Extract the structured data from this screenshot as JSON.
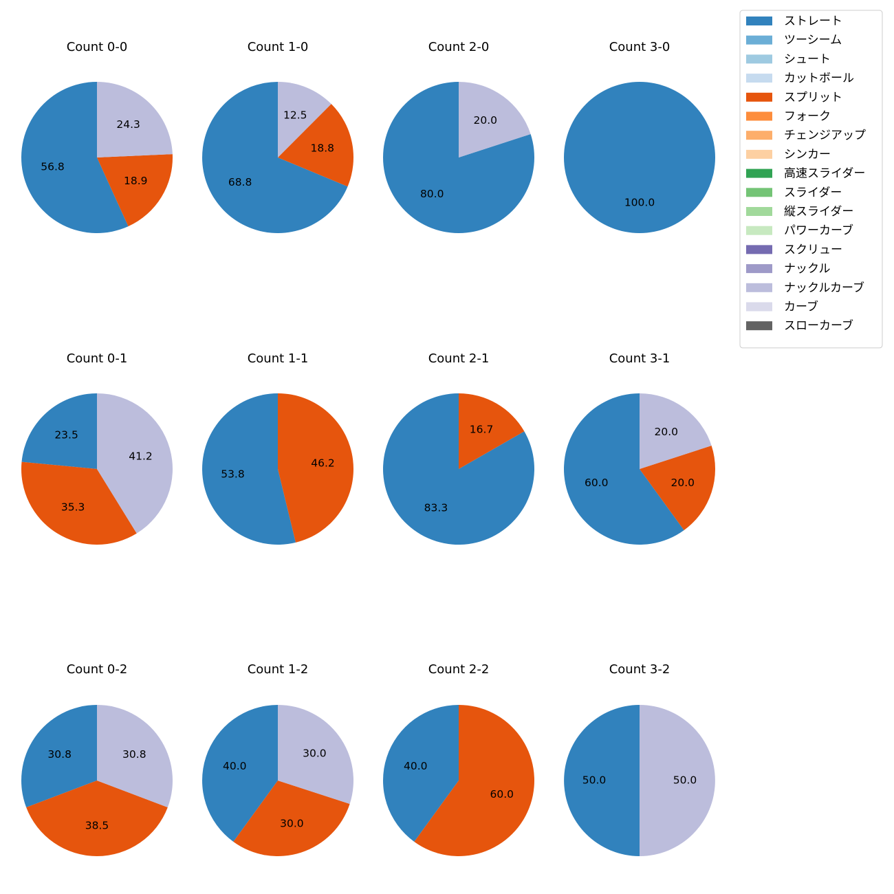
{
  "chart_data": {
    "type": "pie",
    "legend": {
      "placement": "upper-right",
      "entries": [
        {
          "name": "ストレート",
          "color": "#3182bd"
        },
        {
          "name": "ツーシーム",
          "color": "#6baed6"
        },
        {
          "name": "シュート",
          "color": "#9ecae1"
        },
        {
          "name": "カットボール",
          "color": "#c6dbef"
        },
        {
          "name": "スプリット",
          "color": "#e6550d"
        },
        {
          "name": "フォーク",
          "color": "#fd8d3c"
        },
        {
          "name": "チェンジアップ",
          "color": "#fdae6b"
        },
        {
          "name": "シンカー",
          "color": "#fdd0a2"
        },
        {
          "name": "高速スライダー",
          "color": "#31a354"
        },
        {
          "name": "スライダー",
          "color": "#74c476"
        },
        {
          "name": "縦スライダー",
          "color": "#a1d99b"
        },
        {
          "name": "パワーカーブ",
          "color": "#c7e9c0"
        },
        {
          "name": "スクリュー",
          "color": "#756bb1"
        },
        {
          "name": "ナックル",
          "color": "#9e9ac8"
        },
        {
          "name": "ナックルカーブ",
          "color": "#bcbddc"
        },
        {
          "name": "カーブ",
          "color": "#dadaeb"
        },
        {
          "name": "スローカーブ",
          "color": "#636363"
        }
      ]
    },
    "pies": [
      {
        "title": "Count 0-0",
        "slices": [
          {
            "pitch": "ストレート",
            "value": 56.8
          },
          {
            "pitch": "スプリット",
            "value": 18.9
          },
          {
            "pitch": "ナックルカーブ",
            "value": 24.3
          }
        ]
      },
      {
        "title": "Count 1-0",
        "slices": [
          {
            "pitch": "ストレート",
            "value": 68.8
          },
          {
            "pitch": "スプリット",
            "value": 18.8
          },
          {
            "pitch": "ナックルカーブ",
            "value": 12.5
          }
        ]
      },
      {
        "title": "Count 2-0",
        "slices": [
          {
            "pitch": "ストレート",
            "value": 80.0
          },
          {
            "pitch": "ナックルカーブ",
            "value": 20.0
          }
        ]
      },
      {
        "title": "Count 3-0",
        "slices": [
          {
            "pitch": "ストレート",
            "value": 100.0
          }
        ]
      },
      {
        "title": "Count 0-1",
        "slices": [
          {
            "pitch": "ストレート",
            "value": 23.5
          },
          {
            "pitch": "スプリット",
            "value": 35.3
          },
          {
            "pitch": "ナックルカーブ",
            "value": 41.2
          }
        ]
      },
      {
        "title": "Count 1-1",
        "slices": [
          {
            "pitch": "ストレート",
            "value": 53.8
          },
          {
            "pitch": "スプリット",
            "value": 46.2
          }
        ]
      },
      {
        "title": "Count 2-1",
        "slices": [
          {
            "pitch": "ストレート",
            "value": 83.3
          },
          {
            "pitch": "スプリット",
            "value": 16.7
          }
        ]
      },
      {
        "title": "Count 3-1",
        "slices": [
          {
            "pitch": "ストレート",
            "value": 60.0
          },
          {
            "pitch": "スプリット",
            "value": 20.0
          },
          {
            "pitch": "ナックルカーブ",
            "value": 20.0
          }
        ]
      },
      {
        "title": "Count 0-2",
        "slices": [
          {
            "pitch": "ストレート",
            "value": 30.8
          },
          {
            "pitch": "スプリット",
            "value": 38.5
          },
          {
            "pitch": "ナックルカーブ",
            "value": 30.8
          }
        ]
      },
      {
        "title": "Count 1-2",
        "slices": [
          {
            "pitch": "ストレート",
            "value": 40.0
          },
          {
            "pitch": "スプリット",
            "value": 30.0
          },
          {
            "pitch": "ナックルカーブ",
            "value": 30.0
          }
        ]
      },
      {
        "title": "Count 2-2",
        "slices": [
          {
            "pitch": "ストレート",
            "value": 40.0
          },
          {
            "pitch": "スプリット",
            "value": 60.0
          }
        ]
      },
      {
        "title": "Count 3-2",
        "slices": [
          {
            "pitch": "ストレート",
            "value": 50.0
          },
          {
            "pitch": "ナックルカーブ",
            "value": 50.0
          }
        ]
      }
    ]
  }
}
